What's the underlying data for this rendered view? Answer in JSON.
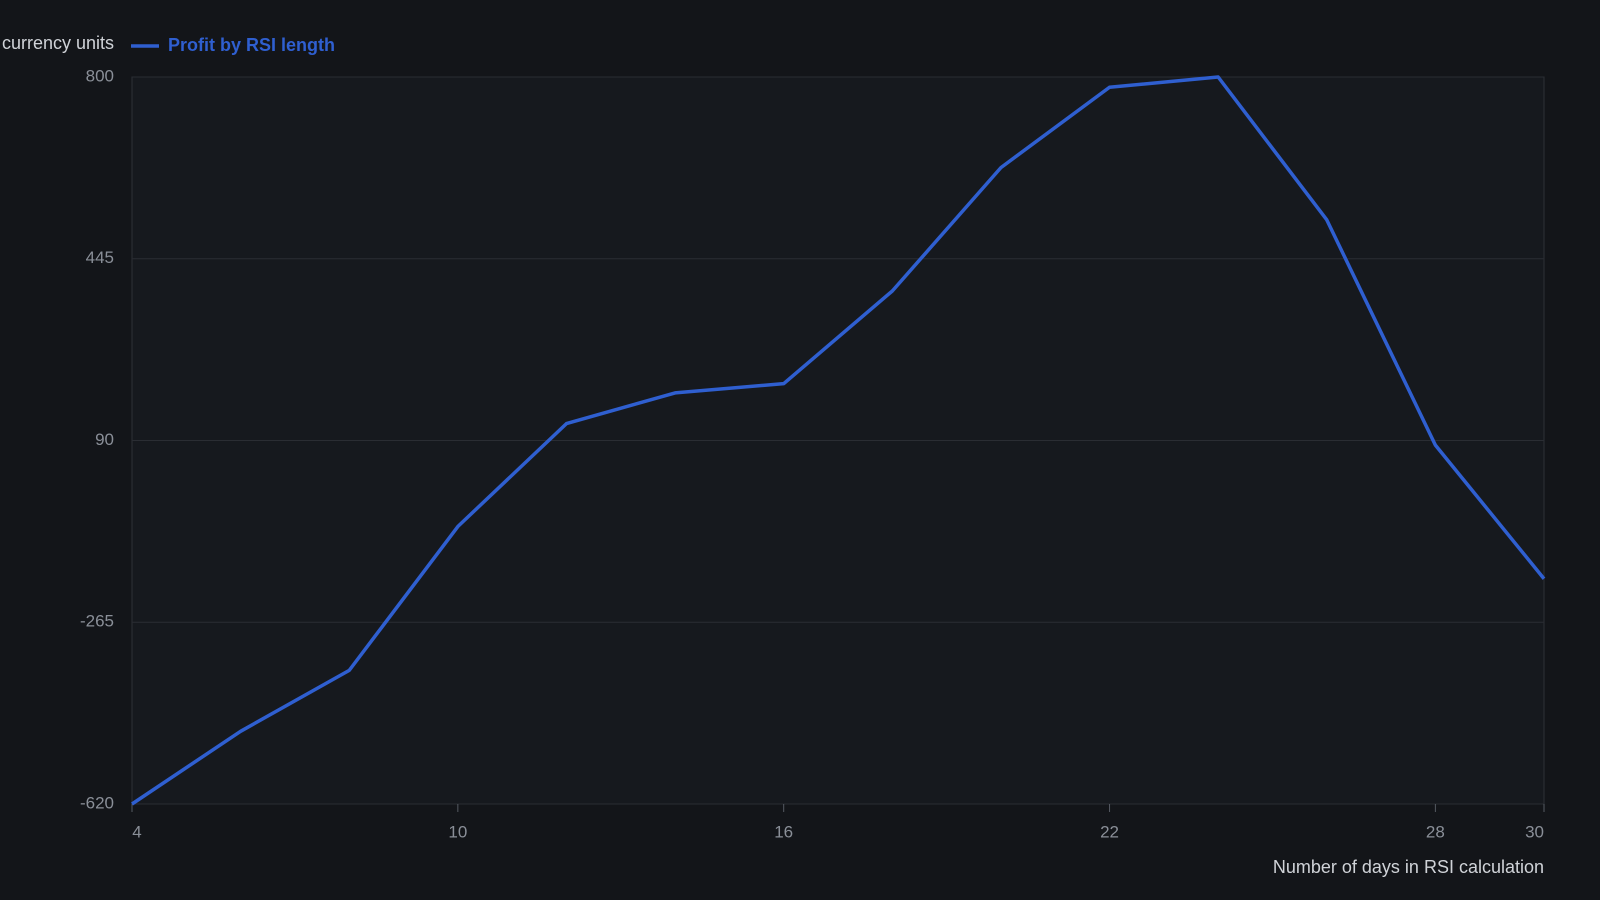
{
  "chart_data": {
    "type": "line",
    "y_label": "currency units",
    "x_label": "Number of days in RSI calculation",
    "x": [
      4,
      6,
      8,
      10,
      12,
      14,
      16,
      18,
      20,
      22,
      24,
      26,
      28,
      30
    ],
    "series": [
      {
        "name": "Profit by RSI length",
        "color": "#2f5fd0",
        "values": [
          -620,
          -478,
          -359,
          -78,
          123,
          183,
          201,
          382,
          623,
          780,
          800,
          521,
          81,
          -180
        ]
      }
    ],
    "xlim": [
      4,
      30
    ],
    "xticks": [
      4,
      10,
      16,
      22,
      28,
      30
    ],
    "ylim": [
      -620,
      800
    ],
    "yticks": [
      -620,
      -265,
      90,
      445,
      800
    ],
    "grid": true
  }
}
